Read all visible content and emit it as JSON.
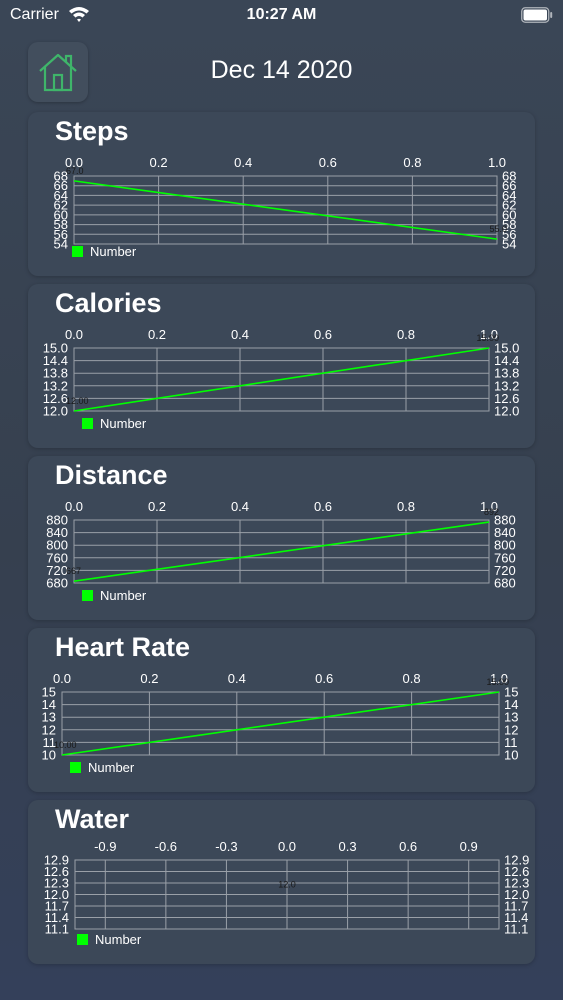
{
  "status_bar": {
    "carrier": "Carrier",
    "time": "10:27 AM"
  },
  "header": {
    "date": "Dec 14 2020",
    "home_icon": "home-icon"
  },
  "colors": {
    "line": "#00ff00",
    "grid": "#9aa0a8",
    "card": "#3c4858",
    "text": "#ffffff"
  },
  "charts": [
    {
      "id": "steps",
      "title": "Steps",
      "legend": "Number",
      "chart_data": {
        "type": "line",
        "x_ticks": [
          "0.0",
          "0.2",
          "0.4",
          "0.6",
          "0.8",
          "1.0"
        ],
        "y_ticks": [
          "68",
          "66",
          "64",
          "62",
          "60",
          "58",
          "56",
          "54"
        ],
        "series": [
          {
            "name": "Number",
            "x": [
              0.0,
              1.0
            ],
            "y": [
              67.0,
              55.0
            ]
          }
        ],
        "xlim": [
          0,
          1
        ],
        "ylim": [
          54,
          68
        ],
        "point_labels": [
          "67.0",
          "55.0"
        ]
      }
    },
    {
      "id": "calories",
      "title": "Calories",
      "legend": "Number",
      "chart_data": {
        "type": "line",
        "x_ticks": [
          "0.0",
          "0.2",
          "0.4",
          "0.6",
          "0.8",
          "1.0"
        ],
        "y_ticks": [
          "15.0",
          "14.4",
          "13.8",
          "13.2",
          "12.6",
          "12.0"
        ],
        "series": [
          {
            "name": "Number",
            "x": [
              0.0,
              1.0
            ],
            "y": [
              12.0,
              15.0
            ]
          }
        ],
        "xlim": [
          0,
          1
        ],
        "ylim": [
          12.0,
          15.0
        ],
        "point_labels": [
          "12.00",
          "15.00"
        ]
      }
    },
    {
      "id": "distance",
      "title": "Distance",
      "legend": "Number",
      "chart_data": {
        "type": "line",
        "x_ticks": [
          "0.0",
          "0.2",
          "0.4",
          "0.6",
          "0.8",
          "1.0"
        ],
        "y_ticks": [
          "880",
          "840",
          "800",
          "760",
          "720",
          "680"
        ],
        "series": [
          {
            "name": "Number",
            "x": [
              0.0,
              1.0
            ],
            "y": [
              667,
              892
            ]
          }
        ],
        "xlim": [
          0,
          1
        ],
        "ylim": [
          660,
          900
        ],
        "point_labels": [
          "667",
          "892"
        ]
      }
    },
    {
      "id": "heart_rate",
      "title": "Heart Rate",
      "legend": "Number",
      "chart_data": {
        "type": "line",
        "x_ticks": [
          "0.0",
          "0.2",
          "0.4",
          "0.6",
          "0.8",
          "1.0"
        ],
        "y_ticks": [
          "15",
          "14",
          "13",
          "12",
          "11",
          "10"
        ],
        "series": [
          {
            "name": "Number",
            "x": [
              0.0,
              1.0
            ],
            "y": [
              10.0,
              15.0
            ]
          }
        ],
        "xlim": [
          0,
          1
        ],
        "ylim": [
          10,
          15
        ],
        "point_labels": [
          "10.00",
          "15.00"
        ]
      }
    },
    {
      "id": "water",
      "title": "Water",
      "legend": "Number",
      "chart_data": {
        "type": "line",
        "x_ticks": [
          "-0.9",
          "-0.6",
          "-0.3",
          "0.0",
          "0.3",
          "0.6",
          "0.9"
        ],
        "y_ticks": [
          "12.9",
          "12.6",
          "12.3",
          "12.0",
          "11.7",
          "11.4",
          "11.1"
        ],
        "series": [
          {
            "name": "Number",
            "x": [
              0.0
            ],
            "y": [
              12.0
            ]
          }
        ],
        "xlim": [
          -1.05,
          1.05
        ],
        "ylim": [
          11.1,
          12.9
        ],
        "point_labels": [
          "12.0"
        ]
      }
    }
  ]
}
